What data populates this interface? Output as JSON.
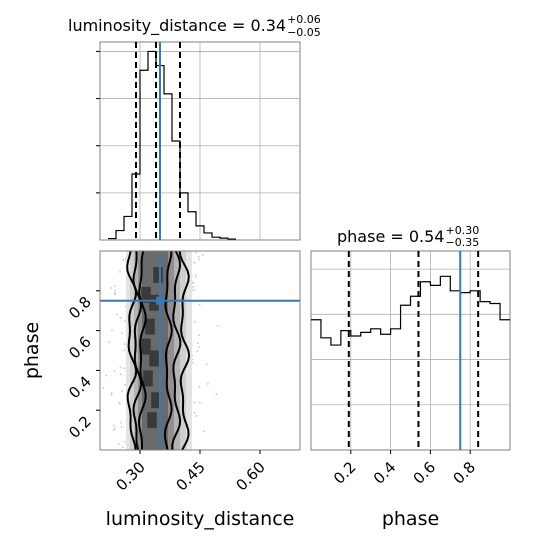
{
  "chart_data": {
    "type": "corner",
    "parameters": [
      "luminosity_distance",
      "phase"
    ],
    "truths": {
      "luminosity_distance": 0.35,
      "phase": 0.75
    },
    "colors": {
      "truth": "#3b78b5",
      "hist": "#000000",
      "grid": "#b0b0b0",
      "contour_fill": "#000000"
    },
    "grid": true,
    "panels": {
      "luminosity_distance": {
        "title_prefix": "luminosity_distance = 0.34",
        "title_sup": "+0.06",
        "title_sub": "−0.05",
        "xlim": [
          0.2,
          0.7
        ],
        "quantiles": [
          0.29,
          0.34,
          0.4
        ],
        "bin_width": 0.02,
        "bins": [
          {
            "x": 0.22,
            "y": 0.3
          },
          {
            "x": 0.24,
            "y": 2.0
          },
          {
            "x": 0.26,
            "y": 5.0
          },
          {
            "x": 0.28,
            "y": 14.0
          },
          {
            "x": 0.3,
            "y": 36.0
          },
          {
            "x": 0.32,
            "y": 40.0
          },
          {
            "x": 0.34,
            "y": 37.0
          },
          {
            "x": 0.36,
            "y": 31.0
          },
          {
            "x": 0.38,
            "y": 21.0
          },
          {
            "x": 0.4,
            "y": 10.0
          },
          {
            "x": 0.42,
            "y": 6.0
          },
          {
            "x": 0.44,
            "y": 3.0
          },
          {
            "x": 0.46,
            "y": 1.5
          },
          {
            "x": 0.48,
            "y": 0.6
          },
          {
            "x": 0.5,
            "y": 0.4
          },
          {
            "x": 0.52,
            "y": 0.2
          }
        ],
        "ylim": [
          0,
          42
        ]
      },
      "phase": {
        "title_prefix": "phase = 0.54",
        "title_sup": "+0.30",
        "title_sub": "−0.35",
        "xlim": [
          0.0,
          1.0
        ],
        "xticks": [
          "0.2",
          "0.4",
          "0.6",
          "0.8"
        ],
        "quantiles": [
          0.19,
          0.54,
          0.84
        ],
        "bin_width": 0.05,
        "bins": [
          {
            "x": 0.0,
            "y": 0.72
          },
          {
            "x": 0.05,
            "y": 0.62
          },
          {
            "x": 0.1,
            "y": 0.58
          },
          {
            "x": 0.15,
            "y": 0.66
          },
          {
            "x": 0.2,
            "y": 0.63
          },
          {
            "x": 0.25,
            "y": 0.65
          },
          {
            "x": 0.3,
            "y": 0.67
          },
          {
            "x": 0.35,
            "y": 0.64
          },
          {
            "x": 0.4,
            "y": 0.67
          },
          {
            "x": 0.45,
            "y": 0.8
          },
          {
            "x": 0.5,
            "y": 0.85
          },
          {
            "x": 0.55,
            "y": 0.93
          },
          {
            "x": 0.6,
            "y": 0.91
          },
          {
            "x": 0.65,
            "y": 0.96
          },
          {
            "x": 0.7,
            "y": 0.88
          },
          {
            "x": 0.75,
            "y": 0.87
          },
          {
            "x": 0.8,
            "y": 0.88
          },
          {
            "x": 0.85,
            "y": 0.82
          },
          {
            "x": 0.9,
            "y": 0.81
          },
          {
            "x": 0.95,
            "y": 0.72
          }
        ],
        "ylim": [
          0,
          1.1
        ]
      }
    },
    "joint": {
      "xlabel": "luminosity_distance",
      "ylabel": "phase",
      "xlim": [
        0.2,
        0.7
      ],
      "ylim": [
        0.0,
        1.0
      ],
      "xticks": [
        "0.30",
        "0.45",
        "0.60"
      ],
      "yticks": [
        "0.2",
        "0.4",
        "0.6",
        "0.8"
      ]
    }
  }
}
